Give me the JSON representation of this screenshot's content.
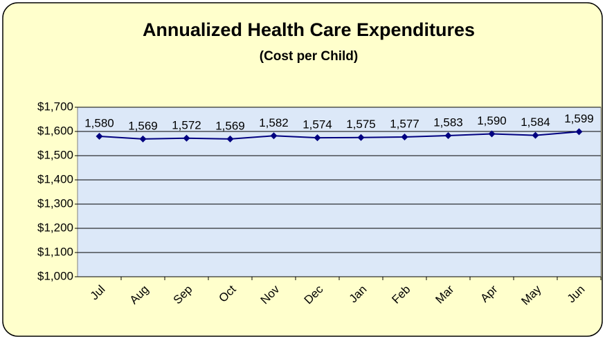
{
  "chart_data": {
    "type": "line",
    "title": "Annualized Health Care Expenditures",
    "subtitle": "(Cost per Child)",
    "categories": [
      "Jul",
      "Aug",
      "Sep",
      "Oct",
      "Nov",
      "Dec",
      "Jan",
      "Feb",
      "Mar",
      "Apr",
      "May",
      "Jun"
    ],
    "values": [
      1580,
      1569,
      1572,
      1569,
      1582,
      1574,
      1575,
      1577,
      1583,
      1590,
      1584,
      1599
    ],
    "value_labels": [
      "1,580",
      "1,569",
      "1,572",
      "1,569",
      "1,582",
      "1,574",
      "1,575",
      "1,577",
      "1,583",
      "1,590",
      "1,584",
      "1,599"
    ],
    "color": "#000080",
    "ylim": [
      1000,
      1700
    ],
    "yticks": [
      {
        "value": 1000,
        "label": "$1,000"
      },
      {
        "value": 1100,
        "label": "$1,100"
      },
      {
        "value": 1200,
        "label": "$1,200"
      },
      {
        "value": 1300,
        "label": "$1,300"
      },
      {
        "value": 1400,
        "label": "$1,400"
      },
      {
        "value": 1500,
        "label": "$1,500"
      },
      {
        "value": 1600,
        "label": "$1,600"
      },
      {
        "value": 1700,
        "label": "$1,700"
      }
    ],
    "grid": true
  }
}
